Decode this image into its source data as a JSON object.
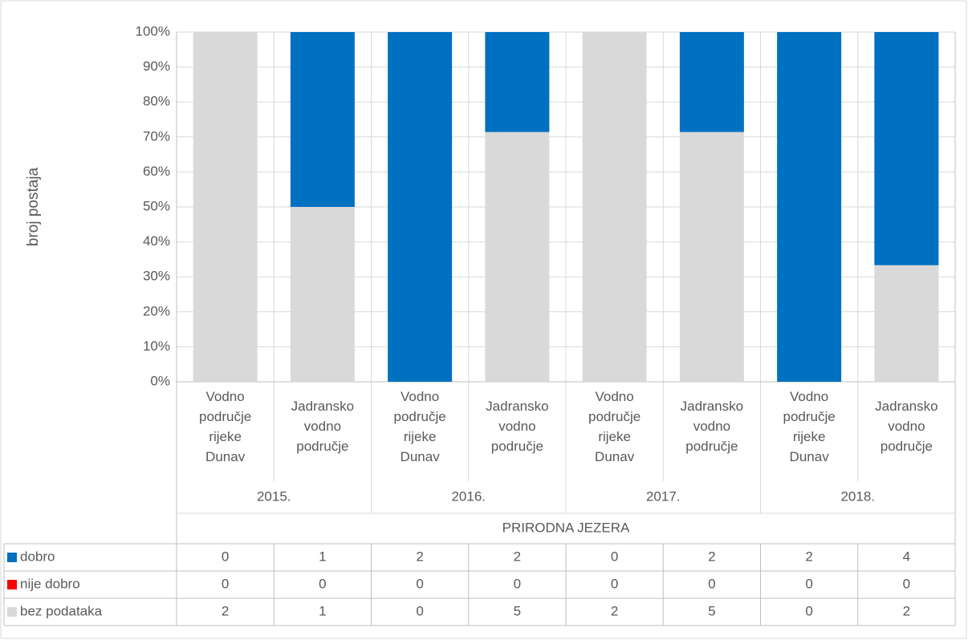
{
  "chart_data": {
    "type": "bar",
    "stacked": "percent",
    "ylabel": "broj postaja",
    "categories": [
      "Vodno područje rijeke Dunav",
      "Jadransko vodno područje",
      "Vodno područje rijeke Dunav",
      "Jadransko vodno područje",
      "Vodno područje rijeke Dunav",
      "Jadransko vodno područje",
      "Vodno područje rijeke Dunav",
      "Jadransko vodno područje"
    ],
    "groups": [
      "2015.",
      "2016.",
      "2017.",
      "2018."
    ],
    "group_title": "PRIRODNA JEZERA",
    "series": [
      {
        "name": "dobro",
        "color": "#0070c0",
        "values": [
          0,
          1,
          2,
          2,
          0,
          2,
          2,
          4
        ]
      },
      {
        "name": "nije dobro",
        "color": "#ff0000",
        "values": [
          0,
          0,
          0,
          0,
          0,
          0,
          0,
          0
        ]
      },
      {
        "name": "bez podataka",
        "color": "#d9d9d9",
        "values": [
          2,
          1,
          0,
          5,
          2,
          5,
          0,
          2
        ]
      }
    ],
    "ylim": [
      0,
      100
    ],
    "yticks": [
      {
        "value": 0,
        "label": "0%"
      },
      {
        "value": 10,
        "label": "10%"
      },
      {
        "value": 20,
        "label": "20%"
      },
      {
        "value": 30,
        "label": "30%"
      },
      {
        "value": 40,
        "label": "40%"
      },
      {
        "value": 50,
        "label": "50%"
      },
      {
        "value": 60,
        "label": "60%"
      },
      {
        "value": 70,
        "label": "70%"
      },
      {
        "value": 80,
        "label": "80%"
      },
      {
        "value": 90,
        "label": "90%"
      },
      {
        "value": 100,
        "label": "100%"
      }
    ],
    "grid": true
  }
}
